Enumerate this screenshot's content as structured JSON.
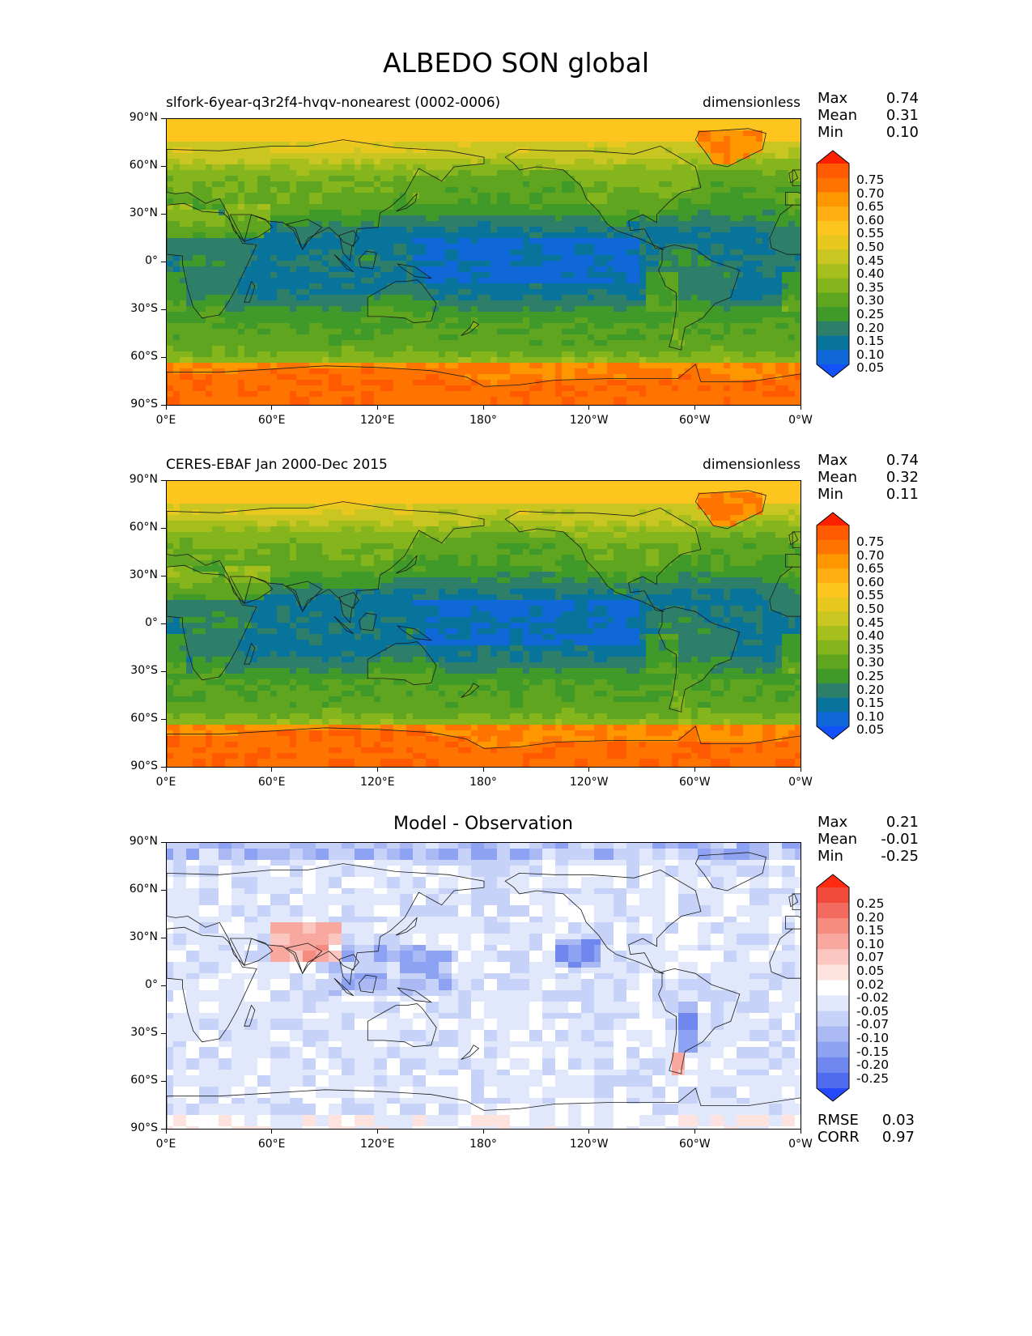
{
  "title": "ALBEDO SON global",
  "y_ticks": [
    "90°N",
    "60°N",
    "30°N",
    "0°",
    "30°S",
    "60°S",
    "90°S"
  ],
  "x_ticks": [
    "0°E",
    "60°E",
    "120°E",
    "180°",
    "120°W",
    "60°W",
    "0°W"
  ],
  "panels": [
    {
      "left_title": "slfork-6year-q3r2f4-hvqv-nonearest (0002-0006)",
      "right_title": "dimensionless",
      "center_title": "",
      "stats": [
        {
          "label": "Max",
          "value": "0.74"
        },
        {
          "label": "Mean",
          "value": "0.31"
        },
        {
          "label": "Min",
          "value": "0.10"
        }
      ],
      "colorbar_labels": [
        "0.75",
        "0.70",
        "0.65",
        "0.60",
        "0.55",
        "0.50",
        "0.45",
        "0.40",
        "0.35",
        "0.30",
        "0.25",
        "0.20",
        "0.15",
        "0.10",
        "0.05"
      ],
      "colorbar_colors": [
        "#ff2000",
        "#ff5a00",
        "#ff7400",
        "#ff9800",
        "#ffae14",
        "#ffc51f",
        "#e8c81e",
        "#c9c621",
        "#a7bf1c",
        "#85b51d",
        "#5fa51f",
        "#3f9a2a",
        "#2e7f6a",
        "#08749c",
        "#1067d8",
        "#1352f8"
      ]
    },
    {
      "left_title": "CERES-EBAF Jan 2000-Dec 2015",
      "right_title": "dimensionless",
      "center_title": "",
      "stats": [
        {
          "label": "Max",
          "value": "0.74"
        },
        {
          "label": "Mean",
          "value": "0.32"
        },
        {
          "label": "Min",
          "value": "0.11"
        }
      ],
      "colorbar_labels": [
        "0.75",
        "0.70",
        "0.65",
        "0.60",
        "0.55",
        "0.50",
        "0.45",
        "0.40",
        "0.35",
        "0.30",
        "0.25",
        "0.20",
        "0.15",
        "0.10",
        "0.05"
      ],
      "colorbar_colors": [
        "#ff2000",
        "#ff5a00",
        "#ff7400",
        "#ff9800",
        "#ffae14",
        "#ffc51f",
        "#e8c81e",
        "#c9c621",
        "#a7bf1c",
        "#85b51d",
        "#5fa51f",
        "#3f9a2a",
        "#2e7f6a",
        "#08749c",
        "#1067d8",
        "#1352f8"
      ]
    },
    {
      "left_title": "",
      "right_title": "",
      "center_title": "Model - Observation",
      "stats": [
        {
          "label": "Max",
          "value": "0.21"
        },
        {
          "label": "Mean",
          "value": "-0.01"
        },
        {
          "label": "Min",
          "value": "-0.25"
        }
      ],
      "extra_stats": [
        {
          "label": "RMSE",
          "value": "0.03"
        },
        {
          "label": "CORR",
          "value": "0.97"
        }
      ],
      "colorbar_labels": [
        "0.25",
        "0.20",
        "0.15",
        "0.10",
        "0.07",
        "0.05",
        "0.02",
        "-0.02",
        "-0.05",
        "-0.07",
        "-0.10",
        "-0.15",
        "-0.20",
        "-0.25"
      ],
      "colorbar_colors": [
        "#ff2a10",
        "#f24a3a",
        "#f36b5e",
        "#f68b80",
        "#f9a8a0",
        "#fbc6c0",
        "#fde2dd",
        "#ffffff",
        "#e2e8fb",
        "#c7d2f8",
        "#aab9f4",
        "#8da2f2",
        "#6f87ee",
        "#4e6ced",
        "#2448fa"
      ]
    }
  ],
  "map_colors": {
    "land_outline": "#1a1a1a"
  }
}
